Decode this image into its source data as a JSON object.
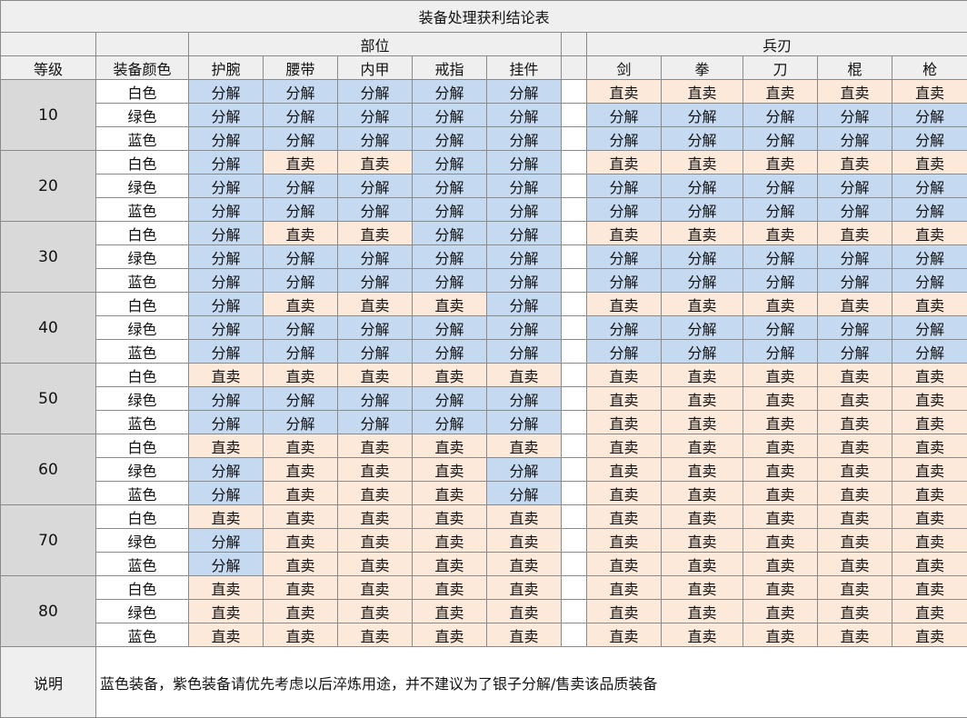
{
  "title": "装备处理获利结论表",
  "group_headers": {
    "parts": "部位",
    "weapons": "兵刃"
  },
  "col_headers": {
    "level": "等级",
    "color": "装备颜色",
    "parts": [
      "护腕",
      "腰带",
      "内甲",
      "戒指",
      "挂件"
    ],
    "weapons": [
      "剑",
      "拳",
      "刀",
      "棍",
      "枪"
    ]
  },
  "labels": {
    "dismantle": "分解",
    "sell": "直卖"
  },
  "legend_colors": {
    "dismantle": "#c5d9f1",
    "sell": "#fde9d9"
  },
  "levels": [
    {
      "level": "10",
      "rows": [
        {
          "color": "白色",
          "parts": [
            "分解",
            "分解",
            "分解",
            "分解",
            "分解"
          ],
          "weapons": [
            "直卖",
            "直卖",
            "直卖",
            "直卖",
            "直卖"
          ]
        },
        {
          "color": "绿色",
          "parts": [
            "分解",
            "分解",
            "分解",
            "分解",
            "分解"
          ],
          "weapons": [
            "分解",
            "分解",
            "分解",
            "分解",
            "分解"
          ]
        },
        {
          "color": "蓝色",
          "parts": [
            "分解",
            "分解",
            "分解",
            "分解",
            "分解"
          ],
          "weapons": [
            "分解",
            "分解",
            "分解",
            "分解",
            "分解"
          ]
        }
      ]
    },
    {
      "level": "20",
      "rows": [
        {
          "color": "白色",
          "parts": [
            "分解",
            "直卖",
            "直卖",
            "分解",
            "分解"
          ],
          "weapons": [
            "直卖",
            "直卖",
            "直卖",
            "直卖",
            "直卖"
          ]
        },
        {
          "color": "绿色",
          "parts": [
            "分解",
            "分解",
            "分解",
            "分解",
            "分解"
          ],
          "weapons": [
            "分解",
            "分解",
            "分解",
            "分解",
            "分解"
          ]
        },
        {
          "color": "蓝色",
          "parts": [
            "分解",
            "分解",
            "分解",
            "分解",
            "分解"
          ],
          "weapons": [
            "分解",
            "分解",
            "分解",
            "分解",
            "分解"
          ]
        }
      ]
    },
    {
      "level": "30",
      "rows": [
        {
          "color": "白色",
          "parts": [
            "分解",
            "直卖",
            "直卖",
            "分解",
            "分解"
          ],
          "weapons": [
            "直卖",
            "直卖",
            "直卖",
            "直卖",
            "直卖"
          ]
        },
        {
          "color": "绿色",
          "parts": [
            "分解",
            "分解",
            "分解",
            "分解",
            "分解"
          ],
          "weapons": [
            "分解",
            "分解",
            "分解",
            "分解",
            "分解"
          ]
        },
        {
          "color": "蓝色",
          "parts": [
            "分解",
            "分解",
            "分解",
            "分解",
            "分解"
          ],
          "weapons": [
            "分解",
            "分解",
            "分解",
            "分解",
            "分解"
          ]
        }
      ]
    },
    {
      "level": "40",
      "rows": [
        {
          "color": "白色",
          "parts": [
            "分解",
            "直卖",
            "直卖",
            "直卖",
            "分解"
          ],
          "weapons": [
            "直卖",
            "直卖",
            "直卖",
            "直卖",
            "直卖"
          ]
        },
        {
          "color": "绿色",
          "parts": [
            "分解",
            "分解",
            "分解",
            "分解",
            "分解"
          ],
          "weapons": [
            "分解",
            "分解",
            "分解",
            "分解",
            "分解"
          ]
        },
        {
          "color": "蓝色",
          "parts": [
            "分解",
            "分解",
            "分解",
            "分解",
            "分解"
          ],
          "weapons": [
            "分解",
            "分解",
            "分解",
            "分解",
            "分解"
          ]
        }
      ]
    },
    {
      "level": "50",
      "rows": [
        {
          "color": "白色",
          "parts": [
            "直卖",
            "直卖",
            "直卖",
            "直卖",
            "直卖"
          ],
          "weapons": [
            "直卖",
            "直卖",
            "直卖",
            "直卖",
            "直卖"
          ]
        },
        {
          "color": "绿色",
          "parts": [
            "分解",
            "分解",
            "分解",
            "分解",
            "分解"
          ],
          "weapons": [
            "直卖",
            "直卖",
            "直卖",
            "直卖",
            "直卖"
          ]
        },
        {
          "color": "蓝色",
          "parts": [
            "分解",
            "分解",
            "分解",
            "分解",
            "分解"
          ],
          "weapons": [
            "直卖",
            "直卖",
            "直卖",
            "直卖",
            "直卖"
          ]
        }
      ]
    },
    {
      "level": "60",
      "rows": [
        {
          "color": "白色",
          "parts": [
            "直卖",
            "直卖",
            "直卖",
            "直卖",
            "直卖"
          ],
          "weapons": [
            "直卖",
            "直卖",
            "直卖",
            "直卖",
            "直卖"
          ]
        },
        {
          "color": "绿色",
          "parts": [
            "分解",
            "直卖",
            "直卖",
            "直卖",
            "分解"
          ],
          "weapons": [
            "直卖",
            "直卖",
            "直卖",
            "直卖",
            "直卖"
          ]
        },
        {
          "color": "蓝色",
          "parts": [
            "分解",
            "直卖",
            "直卖",
            "直卖",
            "分解"
          ],
          "weapons": [
            "直卖",
            "直卖",
            "直卖",
            "直卖",
            "直卖"
          ]
        }
      ]
    },
    {
      "level": "70",
      "rows": [
        {
          "color": "白色",
          "parts": [
            "直卖",
            "直卖",
            "直卖",
            "直卖",
            "直卖"
          ],
          "weapons": [
            "直卖",
            "直卖",
            "直卖",
            "直卖",
            "直卖"
          ]
        },
        {
          "color": "绿色",
          "parts": [
            "分解",
            "直卖",
            "直卖",
            "直卖",
            "直卖"
          ],
          "weapons": [
            "直卖",
            "直卖",
            "直卖",
            "直卖",
            "直卖"
          ]
        },
        {
          "color": "蓝色",
          "parts": [
            "分解",
            "直卖",
            "直卖",
            "直卖",
            "直卖"
          ],
          "weapons": [
            "直卖",
            "直卖",
            "直卖",
            "直卖",
            "直卖"
          ]
        }
      ]
    },
    {
      "level": "80",
      "rows": [
        {
          "color": "白色",
          "parts": [
            "直卖",
            "直卖",
            "直卖",
            "直卖",
            "直卖"
          ],
          "weapons": [
            "直卖",
            "直卖",
            "直卖",
            "直卖",
            "直卖"
          ]
        },
        {
          "color": "绿色",
          "parts": [
            "直卖",
            "直卖",
            "直卖",
            "直卖",
            "直卖"
          ],
          "weapons": [
            "直卖",
            "直卖",
            "直卖",
            "直卖",
            "直卖"
          ]
        },
        {
          "color": "蓝色",
          "parts": [
            "直卖",
            "直卖",
            "直卖",
            "直卖",
            "直卖"
          ],
          "weapons": [
            "直卖",
            "直卖",
            "直卖",
            "直卖",
            "直卖"
          ]
        }
      ]
    }
  ],
  "note": {
    "label": "说明",
    "text": "蓝色装备，紫色装备请优先考虑以后淬炼用途，并不建议为了银子分解/售卖该品质装备"
  }
}
